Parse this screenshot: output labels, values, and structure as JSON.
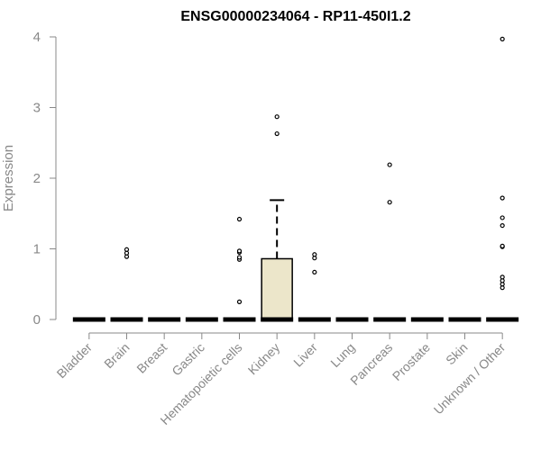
{
  "chart_data": {
    "type": "box",
    "title": "ENSG00000234064 - RP11-450I1.2",
    "xlabel": "",
    "ylabel": "Expression",
    "ylim": [
      0,
      4
    ],
    "yticks": [
      "0",
      "1",
      "2",
      "3",
      "4"
    ],
    "grid": false,
    "box_color": "#ece6ca",
    "categories": [
      {
        "name": "Bladder",
        "q1": 0,
        "median": 0,
        "q3": 0,
        "whisker_low": 0,
        "whisker_high": 0,
        "outliers": []
      },
      {
        "name": "Brain",
        "q1": 0,
        "median": 0,
        "q3": 0,
        "whisker_low": 0,
        "whisker_high": 0,
        "outliers": [
          0.89,
          0.94,
          0.99
        ]
      },
      {
        "name": "Breast",
        "q1": 0,
        "median": 0,
        "q3": 0,
        "whisker_low": 0,
        "whisker_high": 0,
        "outliers": []
      },
      {
        "name": "Gastric",
        "q1": 0,
        "median": 0,
        "q3": 0,
        "whisker_low": 0,
        "whisker_high": 0,
        "outliers": []
      },
      {
        "name": "Hematopoietic cells",
        "q1": 0,
        "median": 0,
        "q3": 0,
        "whisker_low": 0,
        "whisker_high": 0,
        "outliers": [
          0.25,
          0.85,
          0.88,
          0.95,
          0.97,
          1.42
        ]
      },
      {
        "name": "Kidney",
        "q1": 0,
        "median": 0,
        "q3": 0.86,
        "whisker_low": 0,
        "whisker_high": 1.69,
        "outliers": [
          2.63,
          2.87
        ]
      },
      {
        "name": "Liver",
        "q1": 0,
        "median": 0,
        "q3": 0,
        "whisker_low": 0,
        "whisker_high": 0,
        "outliers": [
          0.67,
          0.87,
          0.92
        ]
      },
      {
        "name": "Lung",
        "q1": 0,
        "median": 0,
        "q3": 0,
        "whisker_low": 0,
        "whisker_high": 0,
        "outliers": []
      },
      {
        "name": "Pancreas",
        "q1": 0,
        "median": 0,
        "q3": 0,
        "whisker_low": 0,
        "whisker_high": 0,
        "outliers": [
          1.66,
          2.19
        ]
      },
      {
        "name": "Prostate",
        "q1": 0,
        "median": 0,
        "q3": 0,
        "whisker_low": 0,
        "whisker_high": 0,
        "outliers": []
      },
      {
        "name": "Skin",
        "q1": 0,
        "median": 0,
        "q3": 0,
        "whisker_low": 0,
        "whisker_high": 0,
        "outliers": []
      },
      {
        "name": "Unknown / Other",
        "q1": 0,
        "median": 0,
        "q3": 0,
        "whisker_low": 0,
        "whisker_high": 0,
        "outliers": [
          0.45,
          0.5,
          0.55,
          0.6,
          1.03,
          1.04,
          1.33,
          1.44,
          1.72,
          3.97
        ]
      }
    ]
  }
}
